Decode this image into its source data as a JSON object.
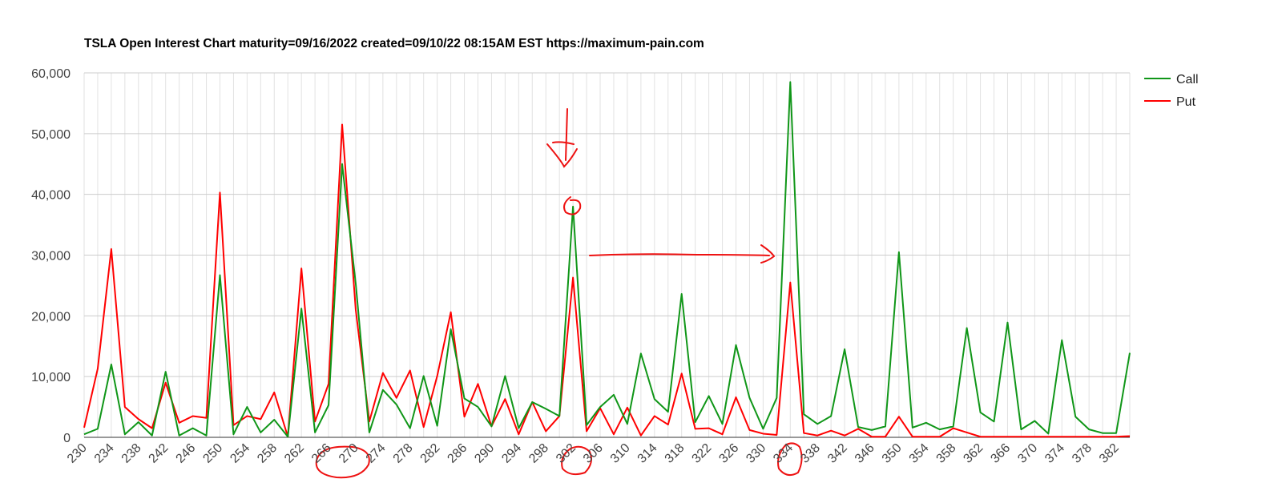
{
  "chart_data": {
    "type": "line",
    "title": "TSLA Open Interest Chart maturity=09/16/2022 created=09/10/22 08:15AM EST https://maximum-pain.com",
    "x": [
      230,
      232,
      234,
      236,
      238,
      240,
      242,
      244,
      246,
      248,
      250,
      252,
      254,
      256,
      258,
      260,
      262,
      264,
      266,
      268,
      270,
      272,
      274,
      276,
      278,
      280,
      282,
      284,
      286,
      288,
      290,
      292,
      294,
      296,
      298,
      300,
      302,
      304,
      306,
      308,
      310,
      312,
      314,
      316,
      318,
      320,
      322,
      324,
      326,
      328,
      330,
      332,
      334,
      336,
      338,
      340,
      342,
      344,
      346,
      348,
      350,
      352,
      354,
      356,
      358,
      360,
      362,
      364,
      366,
      368,
      370,
      372,
      374,
      376,
      378,
      380,
      382,
      384
    ],
    "xlim": [
      230,
      384
    ],
    "xticks": [
      230,
      234,
      238,
      242,
      246,
      250,
      254,
      258,
      262,
      266,
      270,
      274,
      278,
      282,
      286,
      290,
      294,
      298,
      302,
      306,
      310,
      314,
      318,
      322,
      326,
      330,
      334,
      338,
      342,
      346,
      350,
      354,
      358,
      362,
      366,
      370,
      374,
      378,
      382
    ],
    "ylim": [
      0,
      60000
    ],
    "yticks": [
      0,
      {
        "value": 10000,
        "label": "10,000"
      },
      {
        "value": 20000,
        "label": "20,000"
      },
      {
        "value": 30000,
        "label": "30,000"
      },
      {
        "value": 40000,
        "label": "40,000"
      },
      {
        "value": 50000,
        "label": "50,000"
      },
      {
        "value": 60000,
        "label": "60,000"
      }
    ],
    "grid": true,
    "legend": "right",
    "series": [
      {
        "name": "Call",
        "color": "#109618",
        "values": [
          500,
          1400,
          12000,
          500,
          2500,
          300,
          10800,
          300,
          1500,
          300,
          26700,
          500,
          5000,
          800,
          2900,
          100,
          21200,
          800,
          5300,
          45000,
          25300,
          800,
          7800,
          5400,
          1500,
          10100,
          1900,
          17800,
          6400,
          5000,
          1800,
          10100,
          1500,
          5800,
          4700,
          3500,
          38000,
          2000,
          5000,
          7000,
          2200,
          13800,
          6300,
          4200,
          23600,
          2500,
          6800,
          2200,
          15200,
          6500,
          1400,
          6500,
          58500,
          3800,
          2200,
          3500,
          14500,
          1700,
          1200,
          1800,
          30500,
          1600,
          2400,
          1300,
          1800,
          18000,
          4100,
          2600,
          18900,
          1300,
          2700,
          600,
          16000,
          3400,
          1300,
          700,
          700,
          13900
        ]
      },
      {
        "name": "Put",
        "color": "#ff0000",
        "values": [
          1600,
          11300,
          31000,
          5000,
          3000,
          1500,
          9000,
          2400,
          3500,
          3200,
          40300,
          2000,
          3500,
          3000,
          7400,
          100,
          27800,
          2600,
          8800,
          51500,
          21000,
          2600,
          10600,
          6500,
          11000,
          1700,
          10100,
          20600,
          3400,
          8800,
          1800,
          6300,
          500,
          5800,
          1000,
          3500,
          26300,
          1000,
          4800,
          500,
          4900,
          300,
          3500,
          2100,
          10500,
          1400,
          1500,
          500,
          6600,
          1200,
          600,
          400,
          25500,
          700,
          300,
          1100,
          300,
          1400,
          100,
          100,
          3400,
          100,
          100,
          100,
          1500,
          800,
          100,
          100,
          100,
          100,
          100,
          100,
          100,
          100,
          100,
          100,
          100,
          200
        ]
      }
    ]
  }
}
